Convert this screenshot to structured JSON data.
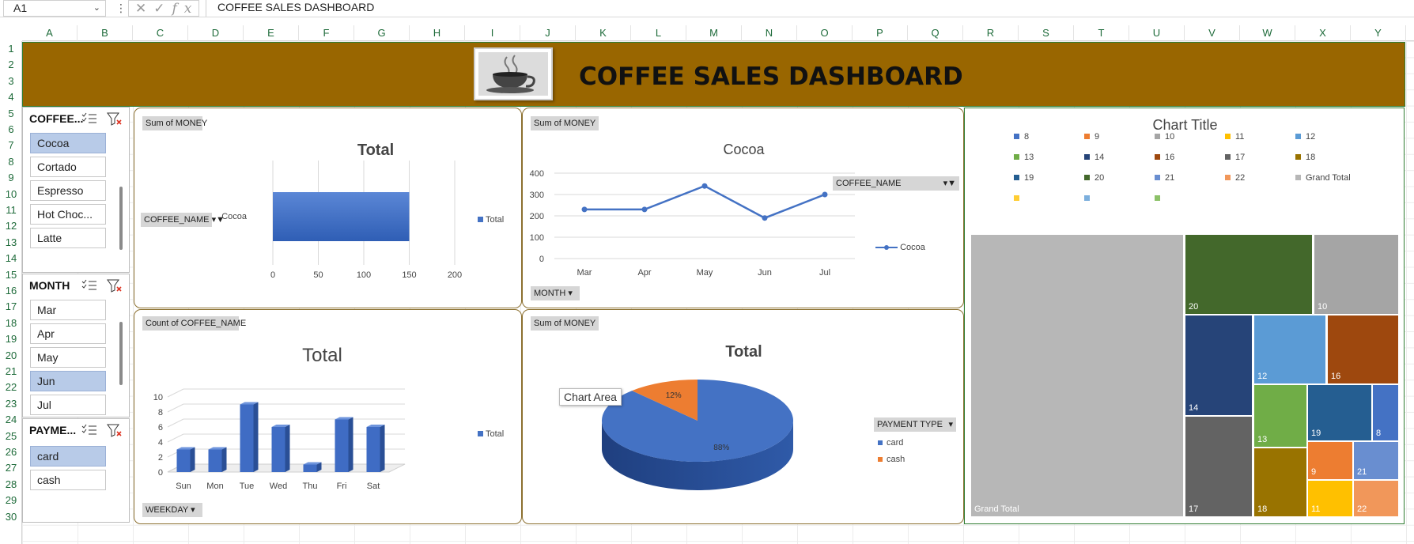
{
  "formula_bar": {
    "name_box": "A1",
    "formula": "COFFEE SALES DASHBOARD"
  },
  "columns": [
    "A",
    "B",
    "C",
    "D",
    "E",
    "F",
    "G",
    "H",
    "I",
    "J",
    "K",
    "L",
    "M",
    "N",
    "O",
    "P",
    "Q",
    "R",
    "S",
    "T",
    "U",
    "V",
    "W",
    "X",
    "Y"
  ],
  "rows": [
    "1",
    "2",
    "3",
    "4",
    "5",
    "6",
    "7",
    "8",
    "9",
    "10",
    "11",
    "12",
    "13",
    "14",
    "15",
    "16",
    "17",
    "18",
    "19",
    "20",
    "21",
    "22",
    "23",
    "24",
    "25",
    "26",
    "27",
    "28",
    "29",
    "30"
  ],
  "banner": {
    "title": "COFFEE SALES DASHBOARD",
    "colors": {
      "background": "#996600"
    }
  },
  "slicers": {
    "coffee": {
      "header": "COFFEE...",
      "items": [
        "Cocoa",
        "Cortado",
        "Espresso",
        "Hot Choc...",
        "Latte"
      ],
      "selected": [
        "Cocoa"
      ]
    },
    "month": {
      "header": "MONTH",
      "items": [
        "Mar",
        "Apr",
        "May",
        "Jun",
        "Jul"
      ],
      "selected": [
        "Jun"
      ]
    },
    "payment": {
      "header": "PAYME...",
      "items": [
        "card",
        "cash"
      ],
      "selected": [
        "card"
      ]
    }
  },
  "charts": {
    "bar": {
      "field_value": "Sum of MONEY",
      "field_row": "COFFEE_NAME",
      "title": "Total",
      "legend": "Total"
    },
    "line": {
      "field_value": "Sum of MONEY",
      "field_filter": "COFFEE_NAME",
      "field_axis": "MONTH",
      "title": "Cocoa",
      "legend": "Cocoa"
    },
    "column": {
      "field_value": "Count of COFFEE_NAME",
      "field_axis": "WEEKDAY",
      "title": "Total",
      "legend": "Total"
    },
    "pie": {
      "field_value": "Sum of MONEY",
      "field_legend": "PAYMENT TYPE",
      "title": "Total",
      "tooltip": "Chart Area"
    },
    "treemap": {
      "title": "Chart Title"
    }
  },
  "chart_data": [
    {
      "type": "bar",
      "title": "Total",
      "categories": [
        "Cocoa"
      ],
      "series": [
        {
          "name": "Total",
          "values": [
            150
          ]
        }
      ],
      "xlim": [
        0,
        200
      ],
      "xticks": [
        0,
        50,
        100,
        150,
        200
      ],
      "color": "#4472c4"
    },
    {
      "type": "line",
      "title": "Cocoa",
      "categories": [
        "Mar",
        "Apr",
        "May",
        "Jun",
        "Jul"
      ],
      "series": [
        {
          "name": "Cocoa",
          "values": [
            230,
            230,
            340,
            190,
            300
          ]
        }
      ],
      "ylim": [
        0,
        400
      ],
      "yticks": [
        0,
        100,
        200,
        300,
        400
      ],
      "color": "#4472c4"
    },
    {
      "type": "bar",
      "title": "Total",
      "categories": [
        "Sun",
        "Mon",
        "Tue",
        "Wed",
        "Thu",
        "Fri",
        "Sat"
      ],
      "series": [
        {
          "name": "Total",
          "values": [
            3,
            3,
            9,
            6,
            1,
            7,
            6
          ]
        }
      ],
      "ylim": [
        0,
        10
      ],
      "yticks": [
        0,
        2,
        4,
        6,
        8,
        10
      ],
      "color": "#4472c4"
    },
    {
      "type": "pie",
      "title": "Total",
      "categories": [
        "card",
        "cash"
      ],
      "values": [
        88,
        12
      ],
      "labels": [
        "88%",
        "12%"
      ],
      "colors": [
        "#4472c4",
        "#ed7d31"
      ]
    },
    {
      "type": "treemap",
      "title": "Chart Title",
      "legend": [
        "8",
        "9",
        "10",
        "11",
        "12",
        "13",
        "14",
        "16",
        "17",
        "18",
        "19",
        "20",
        "21",
        "22",
        "Grand Total",
        "",
        "",
        ""
      ],
      "legend_colors": [
        "#4472c4",
        "#ed7d31",
        "#a5a5a5",
        "#ffc000",
        "#5b9bd5",
        "#70ad47",
        "#264478",
        "#9e480e",
        "#636363",
        "#997300",
        "#255e91",
        "#43682b",
        "#698ed0",
        "#f1975a",
        "#b7b7b7",
        "#ffcd33",
        "#7cafdd",
        "#8cc168"
      ],
      "tiles": [
        "Grand Total",
        "20",
        "10",
        "14",
        "12",
        "16",
        "13",
        "19",
        "8",
        "17",
        "18",
        "9",
        "21",
        "11",
        "22"
      ]
    }
  ]
}
